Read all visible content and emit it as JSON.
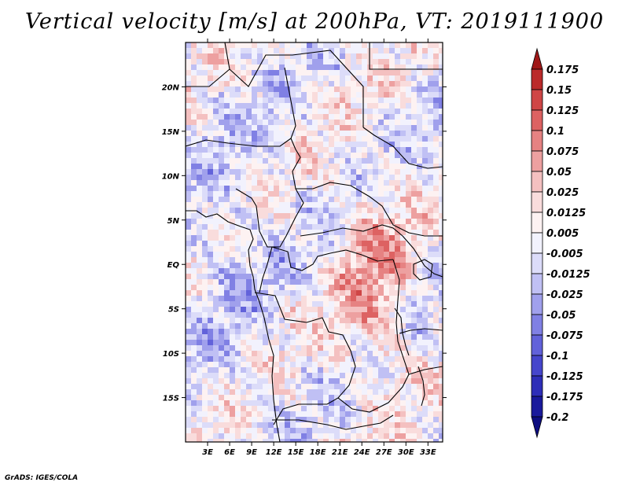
{
  "title": "Vertical velocity [m/s] at 200hPa, VT: 2019111900",
  "credit": "GrADS: IGES/COLA",
  "map": {
    "lon_range": [
      0,
      35
    ],
    "lat_range": [
      -20,
      25
    ],
    "lon_ticks": [
      3,
      6,
      9,
      12,
      15,
      18,
      21,
      24,
      27,
      30,
      33
    ],
    "lon_tick_labels": [
      "3E",
      "6E",
      "9E",
      "12E",
      "15E",
      "18E",
      "21E",
      "24E",
      "27E",
      "30E",
      "33E"
    ],
    "lat_ticks": [
      20,
      15,
      10,
      5,
      0,
      -5,
      -10,
      -15
    ],
    "lat_tick_labels": [
      "20N",
      "15N",
      "10N",
      "5N",
      "EQ",
      "5S",
      "10S",
      "15S"
    ],
    "fill_scheme": "blue-white-red diverging"
  },
  "colorbar": {
    "levels": [
      "0.175",
      "0.15",
      "0.125",
      "0.1",
      "0.075",
      "0.05",
      "0.025",
      "0.0125",
      "0.005",
      "-0.005",
      "-0.0125",
      "-0.025",
      "-0.05",
      "-0.075",
      "-0.1",
      "-0.125",
      "-0.175",
      "-0.2"
    ],
    "colors": [
      "#a01818",
      "#bb2a2a",
      "#cf4646",
      "#dd6262",
      "#e68282",
      "#eda0a0",
      "#f4c0c0",
      "#f9dcdc",
      "#fdf2f2",
      "#f2f2fd",
      "#dcdcf9",
      "#c0c0f4",
      "#a0a0ec",
      "#8080e4",
      "#6262da",
      "#4646cc",
      "#2e2eb8",
      "#1a1a9c",
      "#0e0e80"
    ]
  }
}
